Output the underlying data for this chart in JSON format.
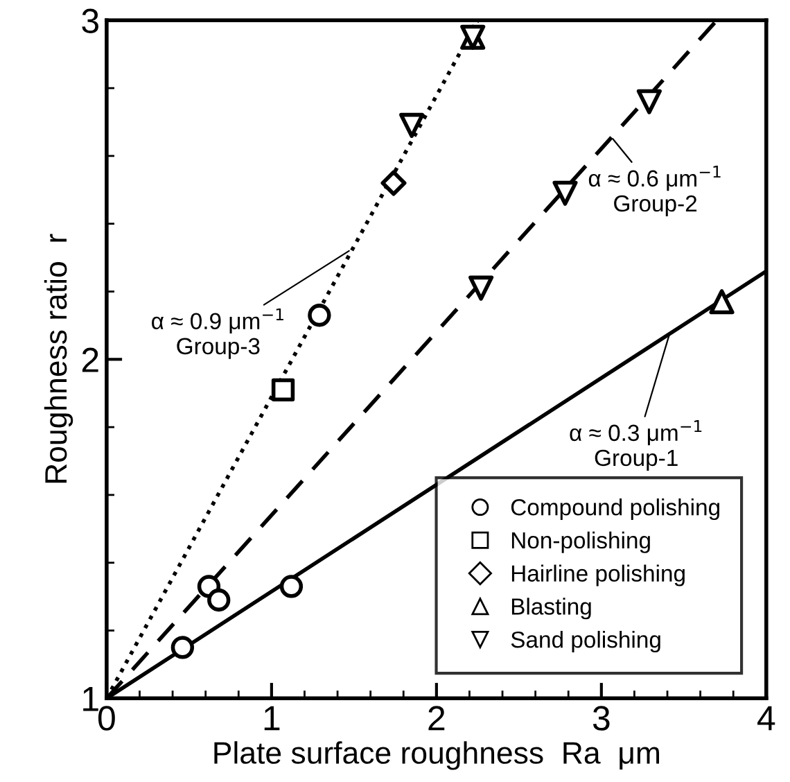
{
  "chart_data": {
    "type": "scatter",
    "xlabel": "Plate surface roughness  Ra  μm",
    "ylabel": "Roughness ratio  r",
    "xlim": [
      0,
      4
    ],
    "ylim": [
      1,
      3
    ],
    "xticks": [
      0,
      1,
      2,
      3,
      4
    ],
    "yticks": [
      1,
      2,
      3
    ],
    "grid": false,
    "legend": "bottom right",
    "series": [
      {
        "type": "line",
        "color": "#000000",
        "line_style": "solid",
        "marker": "none",
        "x": [
          0,
          4
        ],
        "values": [
          1,
          2.26
        ]
      },
      {
        "type": "line",
        "color": "#000000",
        "line_style": "dashed",
        "marker": "none",
        "x": [
          0,
          3.7
        ],
        "values": [
          1,
          3
        ]
      },
      {
        "type": "line",
        "color": "#000000",
        "line_style": "dotted",
        "marker": "none",
        "x": [
          0,
          2.25
        ],
        "values": [
          1,
          3
        ]
      },
      {
        "name": "Compound polishing",
        "color": "#000000",
        "marker": "circle",
        "x": [
          0.46,
          0.62,
          0.68,
          1.12,
          1.29
        ],
        "values": [
          1.15,
          1.33,
          1.29,
          1.33,
          2.13
        ]
      },
      {
        "name": "Non-polishing",
        "color": "#000000",
        "marker": "square",
        "x": [
          1.07
        ],
        "values": [
          1.91
        ]
      },
      {
        "name": "Hairline polishing",
        "color": "#000000",
        "marker": "diamond",
        "x": [
          1.74
        ],
        "values": [
          2.52
        ]
      },
      {
        "name": "Blasting",
        "color": "#000000",
        "marker": "triangle",
        "x": [
          2.22,
          3.73
        ],
        "values": [
          2.95,
          2.17
        ]
      },
      {
        "name": "Sand polishing",
        "color": "#000000",
        "marker": "triangle_down",
        "x": [
          1.85,
          2.22,
          2.27,
          2.78,
          3.29
        ],
        "values": [
          2.69,
          2.95,
          2.21,
          2.49,
          2.76
        ]
      }
    ],
    "annotations": [
      {
        "text": "α ≈ 0.9 μm$^{−1}$\nGroup-3",
        "x": 1.47,
        "y": 2.32
      },
      {
        "text": "α ≈ 0.6 μm$^{−1}$\nGroup-2",
        "x": 3.07,
        "y": 2.65
      },
      {
        "text": "α ≈ 0.3 μm$^{−1}$\nGroup-1",
        "x": 3.41,
        "y": 2.07
      }
    ]
  }
}
